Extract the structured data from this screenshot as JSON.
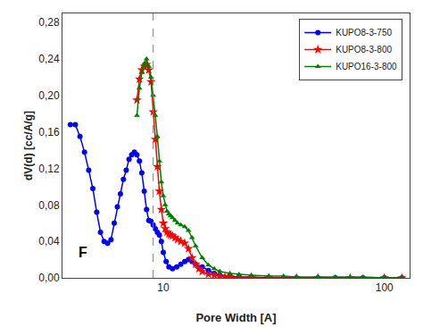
{
  "chart_data": {
    "type": "line",
    "xlabel": "Pore Width [A]",
    "ylabel": "dV(d) [cc/A/g]",
    "annotation": "F",
    "vlines": [
      9.0
    ],
    "log": "x",
    "grid": false,
    "legend": "upper right",
    "xlim": [
      3.5,
      130
    ],
    "xticks": [
      10,
      100
    ],
    "ylim": [
      0.0,
      0.29
    ],
    "yticks": [
      {
        "value": 0.0,
        "label": "0,00"
      },
      {
        "value": 0.04,
        "label": "0,04"
      },
      {
        "value": 0.08,
        "label": "0,08"
      },
      {
        "value": 0.12,
        "label": "0,12"
      },
      {
        "value": 0.16,
        "label": "0,16"
      },
      {
        "value": 0.2,
        "label": "0,20"
      },
      {
        "value": 0.24,
        "label": "0,24"
      },
      {
        "value": 0.28,
        "label": "0,28"
      }
    ],
    "series": [
      {
        "name": "KUPO8-3-750",
        "color": "#0000ff",
        "marker": "circle",
        "x": [
          3.8,
          4.0,
          4.2,
          4.4,
          4.6,
          4.8,
          5.0,
          5.2,
          5.4,
          5.6,
          5.8,
          6.0,
          6.2,
          6.4,
          6.6,
          6.8,
          7.0,
          7.2,
          7.4,
          7.6,
          7.8,
          8.0,
          8.2,
          8.4,
          8.6,
          8.8,
          9.0,
          9.2,
          9.4,
          9.6,
          9.8,
          10.0,
          10.3,
          10.6,
          11.0,
          11.5,
          12.0,
          12.5,
          13.0,
          13.5,
          14.0,
          15.0,
          16.0,
          17.0,
          18.0,
          20.0,
          22.0,
          25.0,
          30.0,
          40.0,
          50.0,
          60.0,
          80.0,
          100.0,
          120.0
        ],
        "values": [
          0.168,
          0.168,
          0.155,
          0.138,
          0.118,
          0.098,
          0.072,
          0.05,
          0.04,
          0.038,
          0.042,
          0.06,
          0.078,
          0.092,
          0.108,
          0.118,
          0.13,
          0.135,
          0.138,
          0.135,
          0.128,
          0.115,
          0.095,
          0.075,
          0.063,
          0.062,
          0.058,
          0.054,
          0.05,
          0.047,
          0.04,
          0.028,
          0.018,
          0.012,
          0.01,
          0.012,
          0.015,
          0.018,
          0.02,
          0.018,
          0.015,
          0.012,
          0.008,
          0.005,
          0.003,
          0.002,
          0.001,
          0.001,
          0.0,
          0.0,
          0.0,
          0.0,
          0.0,
          0.0,
          0.0
        ]
      },
      {
        "name": "KUPO8-3-800",
        "color": "#ff0000",
        "marker": "star",
        "x": [
          7.6,
          7.8,
          8.0,
          8.2,
          8.4,
          8.6,
          8.8,
          9.0,
          9.2,
          9.4,
          9.6,
          9.8,
          10.0,
          10.2,
          10.4,
          10.6,
          10.8,
          11.0,
          11.3,
          11.6,
          12.0,
          12.5,
          13.0,
          13.5,
          14.0,
          14.5,
          15.0,
          16.0,
          17.0,
          18.0,
          19.0,
          20.0,
          22.0,
          25.0,
          30.0,
          40.0,
          50.0,
          70.0,
          100.0,
          120.0
        ],
        "values": [
          0.195,
          0.218,
          0.228,
          0.232,
          0.234,
          0.228,
          0.215,
          0.182,
          0.152,
          0.122,
          0.095,
          0.075,
          0.06,
          0.054,
          0.05,
          0.048,
          0.047,
          0.046,
          0.044,
          0.042,
          0.04,
          0.038,
          0.032,
          0.022,
          0.015,
          0.01,
          0.007,
          0.004,
          0.003,
          0.002,
          0.001,
          0.001,
          0.0,
          0.0,
          0.0,
          0.0,
          0.0,
          0.0,
          0.0,
          0.0
        ]
      },
      {
        "name": "KUPO16-3-800",
        "color": "#008000",
        "marker": "triangle-up",
        "x": [
          7.6,
          7.8,
          8.0,
          8.2,
          8.4,
          8.6,
          8.8,
          9.0,
          9.2,
          9.4,
          9.6,
          9.8,
          10.0,
          10.2,
          10.4,
          10.6,
          10.8,
          11.0,
          11.3,
          11.6,
          12.0,
          12.5,
          13.0,
          13.5,
          14.0,
          15.0,
          16.0,
          17.0,
          18.0,
          20.0,
          22.0,
          25.0,
          30.0,
          35.0,
          40.0,
          50.0,
          60.0,
          70.0,
          80.0,
          100.0,
          120.0
        ],
        "values": [
          0.178,
          0.208,
          0.225,
          0.235,
          0.24,
          0.232,
          0.22,
          0.2,
          0.178,
          0.155,
          0.128,
          0.105,
          0.09,
          0.08,
          0.073,
          0.07,
          0.068,
          0.066,
          0.063,
          0.06,
          0.058,
          0.056,
          0.052,
          0.044,
          0.035,
          0.022,
          0.014,
          0.01,
          0.007,
          0.005,
          0.004,
          0.003,
          0.002,
          0.002,
          0.001,
          0.001,
          0.001,
          0.001,
          0.001,
          0.0,
          0.0
        ]
      }
    ]
  }
}
